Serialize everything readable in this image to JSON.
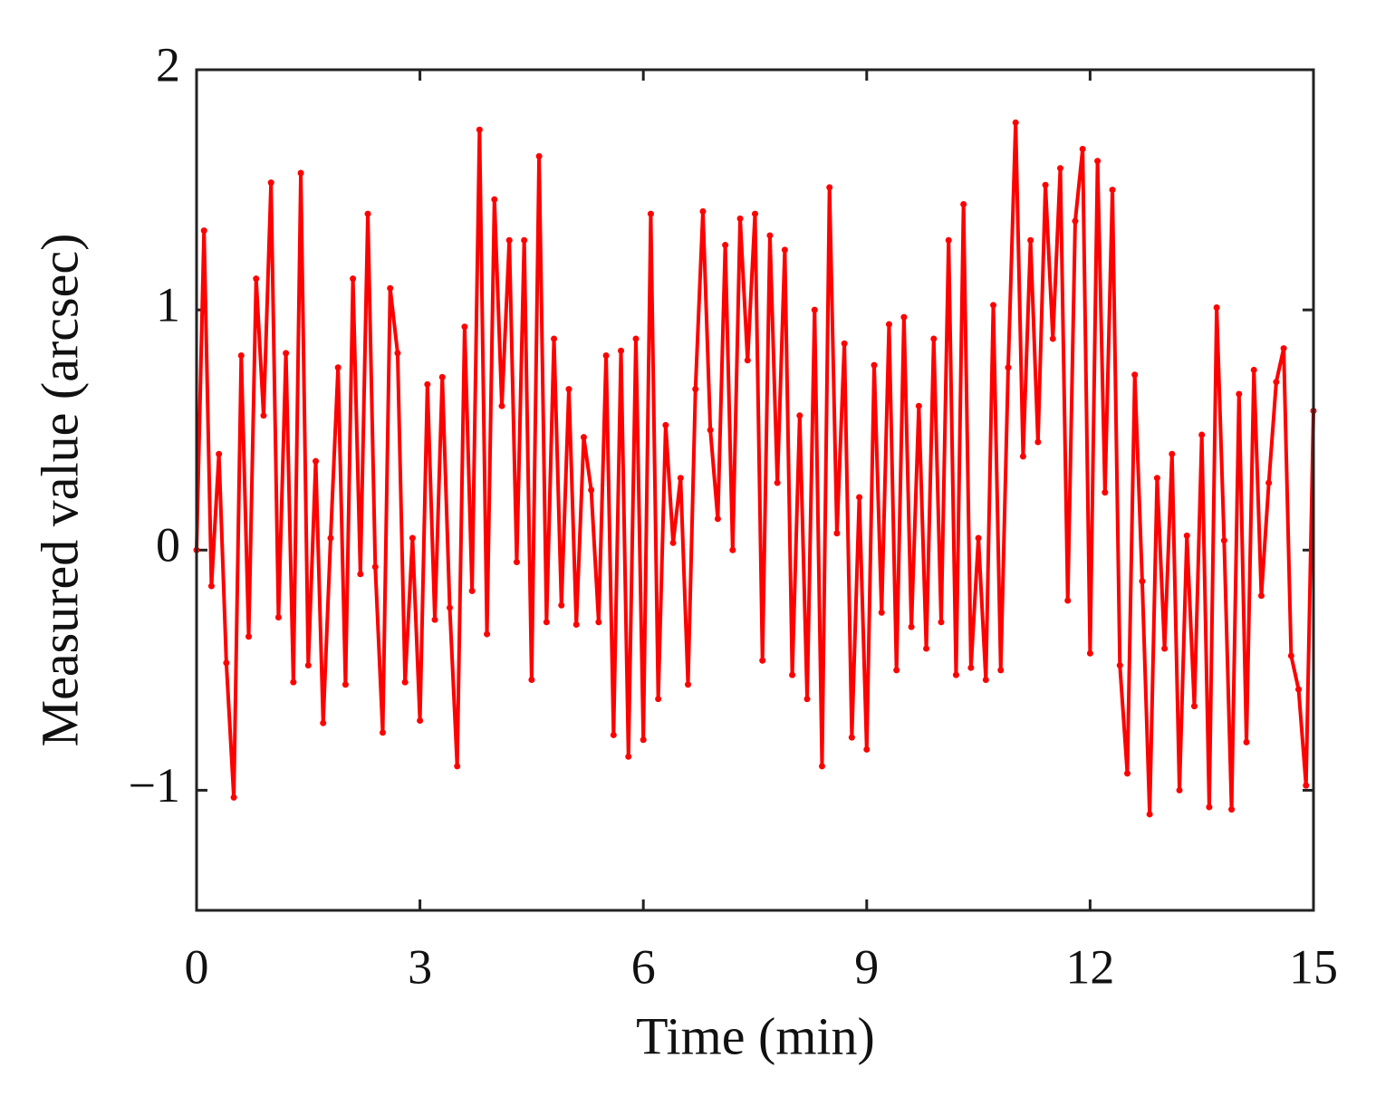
{
  "chart_data": {
    "type": "line",
    "xlabel": "Time (min)",
    "ylabel": "Measured value (arcsec)",
    "color": "#ff0000",
    "xlim": [
      0,
      15
    ],
    "xticks": [
      0,
      3,
      6,
      9,
      12,
      15
    ],
    "ylim": [
      -1.5,
      2
    ],
    "yticks": [
      2,
      1,
      0,
      {
        "value": -1,
        "label": "−1"
      }
    ],
    "x": [
      0,
      0.1,
      0.2,
      0.3,
      0.4,
      0.5,
      0.6,
      0.7,
      0.8,
      0.9,
      1,
      1.1,
      1.2,
      1.3,
      1.4,
      1.5,
      1.6,
      1.7,
      1.8,
      1.9,
      2,
      2.1,
      2.2,
      2.3,
      2.4,
      2.5,
      2.6,
      2.7,
      2.8,
      2.9,
      3,
      3.1,
      3.2,
      3.3,
      3.4,
      3.5,
      3.6,
      3.7,
      3.8,
      3.9,
      4,
      4.1,
      4.2,
      4.3,
      4.4,
      4.5,
      4.6,
      4.7,
      4.8,
      4.9,
      5,
      5.1,
      5.2,
      5.3,
      5.4,
      5.5,
      5.6,
      5.7,
      5.8,
      5.9,
      6,
      6.1,
      6.2,
      6.3,
      6.4,
      6.5,
      6.6,
      6.7,
      6.8,
      6.9,
      7,
      7.1,
      7.2,
      7.3,
      7.4,
      7.5,
      7.6,
      7.7,
      7.8,
      7.9,
      8,
      8.1,
      8.2,
      8.3,
      8.4,
      8.5,
      8.6,
      8.7,
      8.8,
      8.9,
      9,
      9.1,
      9.2,
      9.3,
      9.4,
      9.5,
      9.6,
      9.7,
      9.8,
      9.9,
      10,
      10.1,
      10.2,
      10.3,
      10.4,
      10.5,
      10.6,
      10.7,
      10.8,
      10.9,
      11,
      11.1,
      11.2,
      11.3,
      11.4,
      11.5,
      11.6,
      11.7,
      11.8,
      11.9,
      12,
      12.1,
      12.2,
      12.3,
      12.4,
      12.5,
      12.6,
      12.7,
      12.8,
      12.9,
      13,
      13.1,
      13.2,
      13.3,
      13.4,
      13.5,
      13.6,
      13.7,
      13.8,
      13.9,
      14,
      14.1,
      14.2,
      14.3,
      14.4,
      14.5,
      14.6,
      14.7,
      14.8,
      14.9,
      15
    ],
    "values": [
      0,
      1.33,
      -0.15,
      0.4,
      -0.47,
      -1.03,
      0.81,
      -0.36,
      1.13,
      0.56,
      1.53,
      -0.28,
      0.82,
      -0.55,
      1.57,
      -0.48,
      0.37,
      -0.72,
      0.05,
      0.76,
      -0.56,
      1.13,
      -0.1,
      1.4,
      -0.07,
      -0.76,
      1.09,
      0.82,
      -0.55,
      0.05,
      -0.71,
      0.69,
      -0.29,
      0.72,
      -0.24,
      -0.9,
      0.93,
      -0.17,
      1.75,
      -0.35,
      1.46,
      0.6,
      1.29,
      -0.05,
      1.29,
      -0.54,
      1.64,
      -0.3,
      0.88,
      -0.23,
      0.67,
      -0.31,
      0.47,
      0.25,
      -0.3,
      0.81,
      -0.77,
      0.83,
      -0.86,
      0.88,
      -0.79,
      1.4,
      -0.62,
      0.52,
      0.03,
      0.3,
      -0.56,
      0.67,
      1.41,
      0.5,
      0.13,
      1.27,
      0,
      1.38,
      0.79,
      1.4,
      -0.46,
      1.31,
      0.28,
      1.25,
      -0.52,
      0.56,
      -0.62,
      1,
      -0.9,
      1.51,
      0.07,
      0.86,
      -0.78,
      0.22,
      -0.83,
      0.77,
      -0.26,
      0.94,
      -0.5,
      0.97,
      -0.32,
      0.6,
      -0.41,
      0.88,
      -0.3,
      1.29,
      -0.52,
      1.44,
      -0.49,
      0.05,
      -0.54,
      1.02,
      -0.5,
      0.76,
      1.78,
      0.39,
      1.29,
      0.45,
      1.52,
      0.88,
      1.59,
      -0.21,
      1.37,
      1.67,
      -0.43,
      1.62,
      0.24,
      1.5,
      -0.48,
      -0.93,
      0.73,
      -0.13,
      -1.1,
      0.3,
      -0.41,
      0.4,
      -1,
      0.06,
      -0.65,
      0.48,
      -1.07,
      1.01,
      0.04,
      -1.08,
      0.65,
      -0.8,
      0.75,
      -0.19,
      0.28,
      0.7,
      0.84,
      -0.44,
      -0.58,
      -0.98,
      0.58
    ]
  }
}
